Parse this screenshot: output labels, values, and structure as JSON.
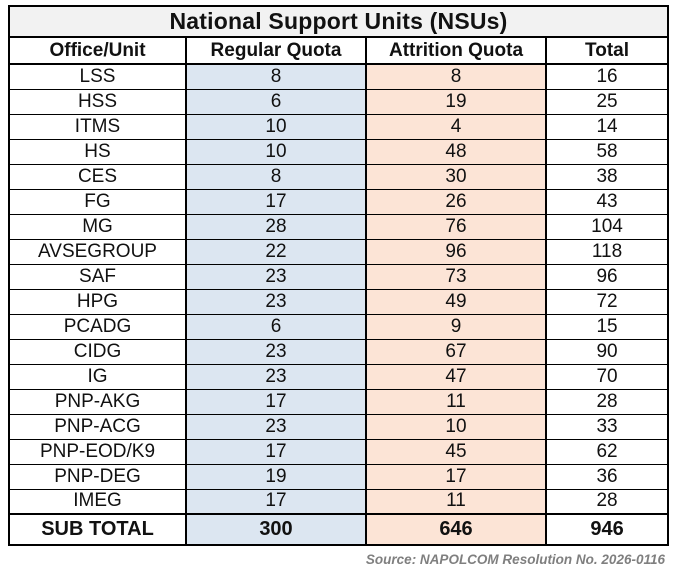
{
  "title": "National Support Units (NSUs)",
  "chart_data": {
    "type": "table",
    "title": "National Support Units (NSUs)",
    "columns": [
      "Office/Unit",
      "Regular Quota",
      "Attrition Quota",
      "Total"
    ],
    "rows": [
      [
        "LSS",
        8,
        8,
        16
      ],
      [
        "HSS",
        6,
        19,
        25
      ],
      [
        "ITMS",
        10,
        4,
        14
      ],
      [
        "HS",
        10,
        48,
        58
      ],
      [
        "CES",
        8,
        30,
        38
      ],
      [
        "FG",
        17,
        26,
        43
      ],
      [
        "MG",
        28,
        76,
        104
      ],
      [
        "AVSEGROUP",
        22,
        96,
        118
      ],
      [
        "SAF",
        23,
        73,
        96
      ],
      [
        "HPG",
        23,
        49,
        72
      ],
      [
        "PCADG",
        6,
        9,
        15
      ],
      [
        "CIDG",
        23,
        67,
        90
      ],
      [
        "IG",
        23,
        47,
        70
      ],
      [
        "PNP-AKG",
        17,
        11,
        28
      ],
      [
        "PNP-ACG",
        23,
        10,
        33
      ],
      [
        "PNP-EOD/K9",
        17,
        45,
        62
      ],
      [
        "PNP-DEG",
        19,
        17,
        36
      ],
      [
        "IMEG",
        17,
        11,
        28
      ]
    ],
    "subtotal": {
      "label": "SUB TOTAL",
      "regular": "300",
      "attrition": "646",
      "total": "946"
    }
  },
  "source": "Source: NAPOLCOM Resolution No. 2026-0116",
  "colors": {
    "title_bg": "#f2f2f2",
    "regular_header_bg": "#c2d4e8",
    "regular_cell_bg": "#dce6f1",
    "attrition_header_bg": "#f8cbad",
    "attrition_cell_bg": "#fce4d6",
    "border": "#000000",
    "source_text": "#7f7f7f"
  }
}
